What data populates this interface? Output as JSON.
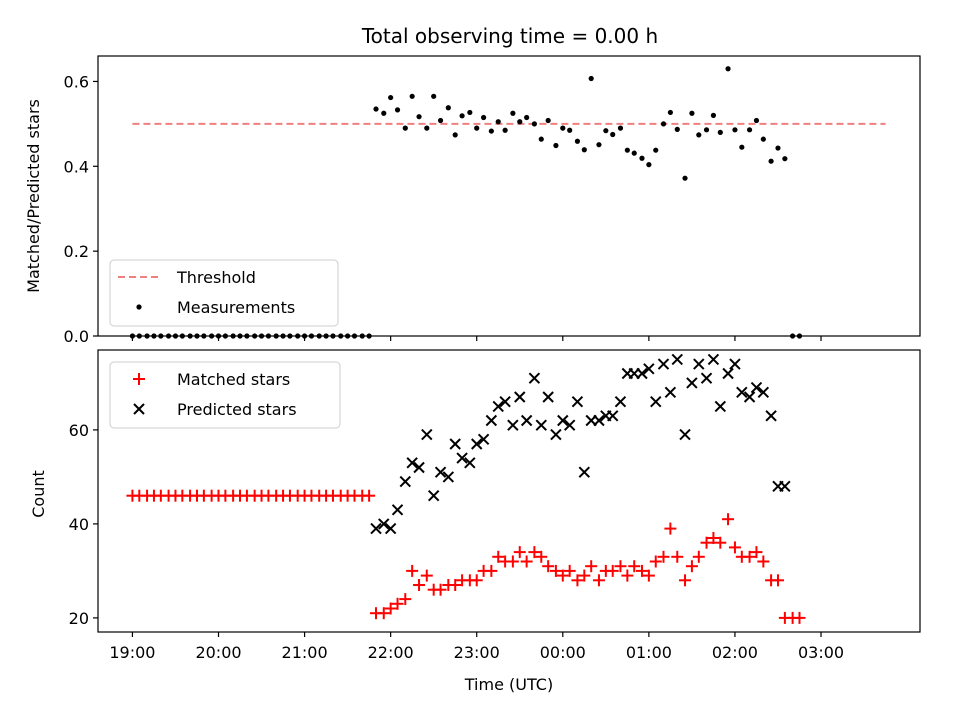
{
  "chart_data": [
    {
      "type": "scatter",
      "title": "Total observing time = 0.00 h",
      "ylabel": "Matched/Predicted stars",
      "xlabel": "",
      "x_axis": "time",
      "xlim": [
        18.6,
        28.15
      ],
      "ylim": [
        0.0,
        0.66
      ],
      "y_ticks": [
        0.0,
        0.2,
        0.4,
        0.6
      ],
      "y_tick_labels": [
        "0.0",
        "0.2",
        "0.4",
        "0.6"
      ],
      "grid": false,
      "legend_position": "lower-left",
      "legend": [
        "Threshold",
        "Measurements"
      ],
      "series": [
        {
          "name": "Threshold",
          "kind": "dashed-line",
          "color": "#f08080",
          "x": [
            19.0,
            27.75
          ],
          "y": [
            0.5,
            0.5
          ]
        },
        {
          "name": "Measurements",
          "kind": "points",
          "color": "#000000",
          "x": [
            19.0,
            19.08,
            19.17,
            19.25,
            19.33,
            19.42,
            19.5,
            19.58,
            19.67,
            19.75,
            19.83,
            19.92,
            20.0,
            20.08,
            20.17,
            20.25,
            20.33,
            20.42,
            20.5,
            20.58,
            20.67,
            20.75,
            20.83,
            20.92,
            21.0,
            21.08,
            21.17,
            21.25,
            21.33,
            21.42,
            21.5,
            21.58,
            21.67,
            21.75,
            21.83,
            21.92,
            22.0,
            22.08,
            22.17,
            22.25,
            22.33,
            22.42,
            22.5,
            22.58,
            22.67,
            22.75,
            22.83,
            22.92,
            23.0,
            23.08,
            23.17,
            23.25,
            23.33,
            23.42,
            23.5,
            23.58,
            23.67,
            23.75,
            23.83,
            23.92,
            24.0,
            24.08,
            24.17,
            24.25,
            24.33,
            24.42,
            24.5,
            24.58,
            24.67,
            24.75,
            24.83,
            24.92,
            25.0,
            25.08,
            25.17,
            25.25,
            25.33,
            25.42,
            25.5,
            25.58,
            25.67,
            25.75,
            25.83,
            25.92,
            26.0,
            26.08,
            26.17,
            26.25,
            26.33,
            26.42,
            26.5,
            26.58,
            26.67,
            26.75
          ],
          "y": [
            0.0,
            0.0,
            0.0,
            0.0,
            0.0,
            0.0,
            0.0,
            0.0,
            0.0,
            0.0,
            0.0,
            0.0,
            0.0,
            0.0,
            0.0,
            0.0,
            0.0,
            0.0,
            0.0,
            0.0,
            0.0,
            0.0,
            0.0,
            0.0,
            0.0,
            0.0,
            0.0,
            0.0,
            0.0,
            0.0,
            0.0,
            0.0,
            0.0,
            0.0,
            0.535,
            0.525,
            0.562,
            0.533,
            0.49,
            0.565,
            0.517,
            0.49,
            0.565,
            0.508,
            0.538,
            0.474,
            0.519,
            0.527,
            0.49,
            0.515,
            0.483,
            0.505,
            0.485,
            0.525,
            0.505,
            0.515,
            0.5,
            0.464,
            0.508,
            0.449,
            0.49,
            0.485,
            0.459,
            0.439,
            0.607,
            0.451,
            0.484,
            0.475,
            0.49,
            0.438,
            0.431,
            0.419,
            0.404,
            0.438,
            0.5,
            0.527,
            0.487,
            0.372,
            0.525,
            0.474,
            0.486,
            0.52,
            0.48,
            0.63,
            0.486,
            0.445,
            0.486,
            0.508,
            0.464,
            0.412,
            0.443,
            0.418,
            0.0,
            0.0
          ]
        }
      ]
    },
    {
      "type": "scatter",
      "title": "",
      "xlabel": "Time (UTC)",
      "ylabel": "Count",
      "x_axis": "time",
      "xlim": [
        18.6,
        28.15
      ],
      "ylim": [
        17.0,
        77.0
      ],
      "x_ticks": [
        19,
        20,
        21,
        22,
        23,
        24,
        25,
        26,
        27
      ],
      "x_tick_labels": [
        "19:00",
        "20:00",
        "21:00",
        "22:00",
        "23:00",
        "00:00",
        "01:00",
        "02:00",
        "03:00"
      ],
      "y_ticks": [
        20,
        40,
        60
      ],
      "y_tick_labels": [
        "20",
        "40",
        "60"
      ],
      "grid": false,
      "legend_position": "upper-left",
      "legend": [
        "Matched stars",
        "Predicted stars"
      ],
      "series": [
        {
          "name": "Matched stars",
          "marker": "plus",
          "color": "#ff0000",
          "x": [
            19.0,
            19.08,
            19.17,
            19.25,
            19.33,
            19.42,
            19.5,
            19.58,
            19.67,
            19.75,
            19.83,
            19.92,
            20.0,
            20.08,
            20.17,
            20.25,
            20.33,
            20.42,
            20.5,
            20.58,
            20.67,
            20.75,
            20.83,
            20.92,
            21.0,
            21.08,
            21.17,
            21.25,
            21.33,
            21.42,
            21.5,
            21.58,
            21.67,
            21.75,
            21.83,
            21.92,
            22.0,
            22.08,
            22.17,
            22.25,
            22.33,
            22.42,
            22.5,
            22.58,
            22.67,
            22.75,
            22.83,
            22.92,
            23.0,
            23.08,
            23.17,
            23.25,
            23.33,
            23.42,
            23.5,
            23.58,
            23.67,
            23.75,
            23.83,
            23.92,
            24.0,
            24.08,
            24.17,
            24.25,
            24.33,
            24.42,
            24.5,
            24.58,
            24.67,
            24.75,
            24.83,
            24.92,
            25.0,
            25.08,
            25.17,
            25.25,
            25.33,
            25.42,
            25.5,
            25.58,
            25.67,
            25.75,
            25.83,
            25.92,
            26.0,
            26.08,
            26.17,
            26.25,
            26.33,
            26.42,
            26.5,
            26.58,
            26.67,
            26.75
          ],
          "y": [
            46,
            46,
            46,
            46,
            46,
            46,
            46,
            46,
            46,
            46,
            46,
            46,
            46,
            46,
            46,
            46,
            46,
            46,
            46,
            46,
            46,
            46,
            46,
            46,
            46,
            46,
            46,
            46,
            46,
            46,
            46,
            46,
            46,
            46,
            21,
            21,
            22,
            23,
            24,
            30,
            27,
            29,
            26,
            26,
            27,
            27,
            28,
            28,
            28,
            30,
            30,
            33,
            32,
            32,
            34,
            32,
            34,
            33,
            31,
            30,
            29,
            30,
            28,
            29,
            31,
            28,
            30,
            30,
            31,
            29,
            31,
            30,
            29,
            32,
            33,
            39,
            33,
            28,
            31,
            33,
            36,
            37,
            36,
            41,
            35,
            33,
            33,
            34,
            32,
            28,
            28,
            20,
            20,
            20
          ]
        },
        {
          "name": "Predicted stars",
          "marker": "x",
          "color": "#000000",
          "x": [
            21.83,
            21.92,
            22.0,
            22.08,
            22.17,
            22.25,
            22.33,
            22.42,
            22.5,
            22.58,
            22.67,
            22.75,
            22.83,
            22.92,
            23.0,
            23.08,
            23.17,
            23.25,
            23.33,
            23.42,
            23.5,
            23.58,
            23.67,
            23.75,
            23.83,
            23.92,
            24.0,
            24.08,
            24.17,
            24.25,
            24.33,
            24.42,
            24.5,
            24.58,
            24.67,
            24.75,
            24.83,
            24.92,
            25.0,
            25.08,
            25.17,
            25.25,
            25.33,
            25.42,
            25.5,
            25.58,
            25.67,
            25.75,
            25.83,
            25.92,
            26.0,
            26.08,
            26.17,
            26.25,
            26.33,
            26.42,
            26.5,
            26.58
          ],
          "y": [
            39,
            40,
            39,
            43,
            49,
            53,
            52,
            59,
            46,
            51,
            50,
            57,
            54,
            53,
            57,
            58,
            62,
            65,
            66,
            61,
            67,
            62,
            71,
            61,
            67,
            59,
            62,
            61,
            66,
            51,
            62,
            62,
            63,
            63,
            66,
            72,
            72,
            72,
            73,
            66,
            74,
            68,
            75,
            59,
            70,
            74,
            71,
            75,
            65,
            72,
            74,
            68,
            67,
            69,
            68,
            63,
            48,
            48
          ]
        }
      ]
    }
  ]
}
